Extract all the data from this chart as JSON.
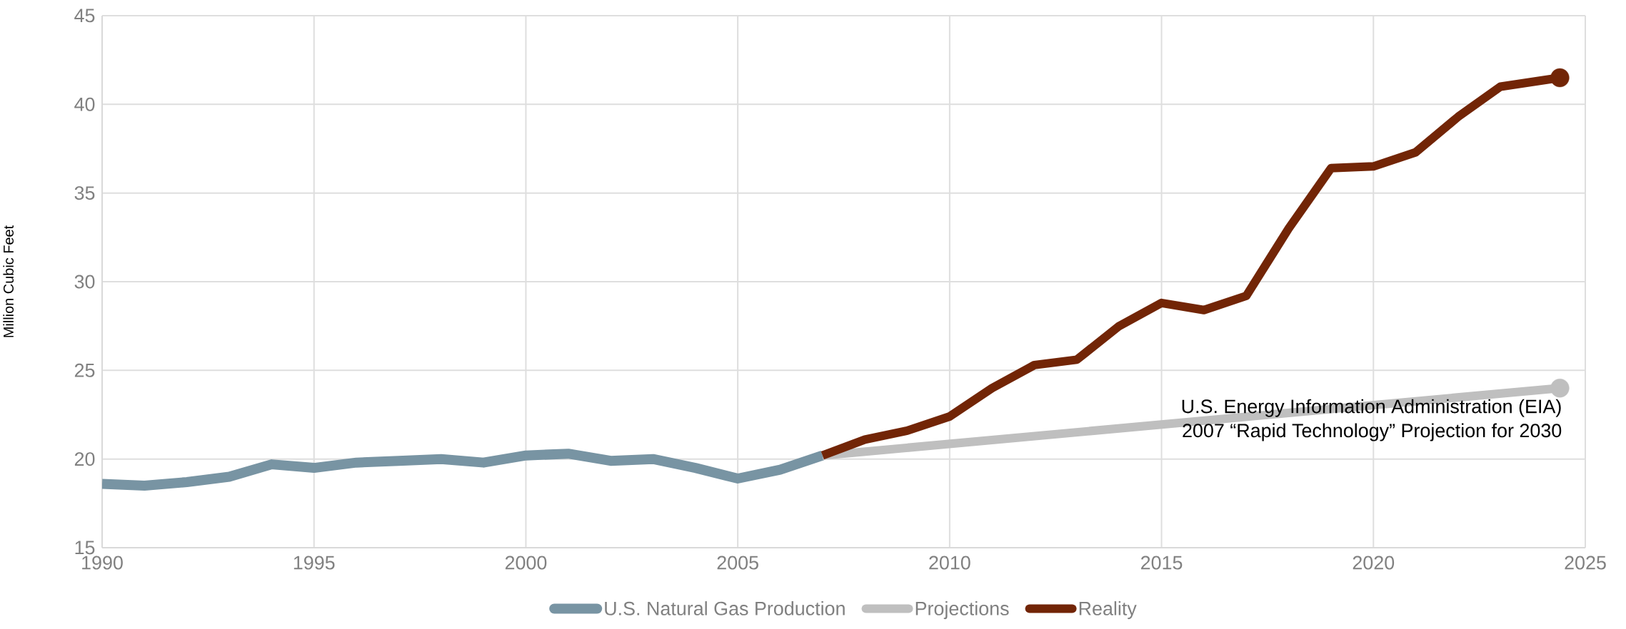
{
  "chart_data": {
    "type": "line",
    "ylabel": "Million Cubic Feet",
    "xlim": [
      1990,
      2025
    ],
    "xticks": [
      1990,
      1995,
      2000,
      2005,
      2010,
      2015,
      2020,
      2025
    ],
    "ylim": [
      15,
      45
    ],
    "yticks": [
      15,
      20,
      25,
      30,
      35,
      40,
      45
    ],
    "grid": true,
    "legend": "bottom",
    "line_style": "solid",
    "series": [
      {
        "name": "U.S. Natural Gas Production",
        "type": "line",
        "marker": "none",
        "color": "#7894a3",
        "x": [
          1990,
          1991,
          1992,
          1993,
          1994,
          1995,
          1996,
          1997,
          1998,
          1999,
          2000,
          2001,
          2002,
          2003,
          2004,
          2005,
          2006,
          2007
        ],
        "values": [
          18.6,
          18.5,
          18.7,
          19.0,
          19.7,
          19.5,
          19.8,
          19.9,
          20.0,
          19.8,
          20.2,
          20.3,
          19.9,
          20.0,
          19.5,
          18.9,
          19.4,
          20.2
        ]
      },
      {
        "name": "Projections",
        "type": "line",
        "marker": "none",
        "color": "#bfbfbf",
        "x": [
          2007,
          2024.4
        ],
        "values": [
          20.2,
          24.0
        ]
      },
      {
        "name": "Reality",
        "type": "line",
        "marker": "none",
        "color": "#722506",
        "x": [
          2007,
          2008,
          2009,
          2010,
          2011,
          2012,
          2013,
          2014,
          2015,
          2016,
          2017,
          2018,
          2019,
          2020,
          2021,
          2022,
          2023,
          2024.4
        ],
        "values": [
          20.2,
          21.1,
          21.6,
          22.4,
          24.0,
          25.3,
          25.6,
          27.5,
          28.8,
          28.4,
          29.2,
          33.0,
          36.4,
          36.5,
          37.3,
          39.3,
          41.0,
          41.5
        ]
      },
      {
        "type": "scatter",
        "marker": "circle",
        "color": "#bfbfbf",
        "x": [
          2024.4
        ],
        "values": [
          24.0
        ]
      },
      {
        "type": "scatter",
        "marker": "circle",
        "color": "#722506",
        "x": [
          2024.4
        ],
        "values": [
          41.5
        ]
      }
    ],
    "annotations": [
      "U.S. Energy Information Administration (EIA)",
      "2007 “Rapid Technology” Projection for 2030"
    ]
  }
}
